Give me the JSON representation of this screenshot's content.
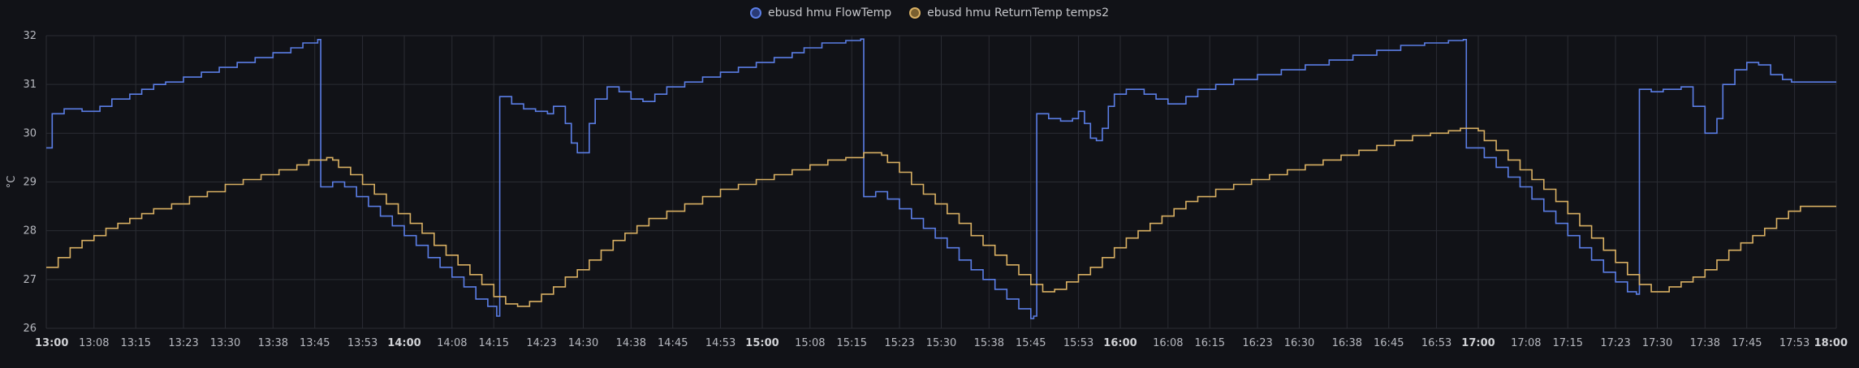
{
  "chart_data": {
    "type": "line",
    "ylabel": "°C",
    "ylim": [
      26,
      32
    ],
    "yticks": [
      "26",
      "27",
      "28",
      "29",
      "30",
      "31",
      "32"
    ],
    "xticks": [
      "13:00",
      "13:08",
      "13:15",
      "13:23",
      "13:30",
      "13:38",
      "13:45",
      "13:53",
      "14:00",
      "14:08",
      "14:15",
      "14:23",
      "14:30",
      "14:38",
      "14:45",
      "14:53",
      "15:00",
      "15:08",
      "15:15",
      "15:23",
      "15:30",
      "15:38",
      "15:45",
      "15:53",
      "16:00",
      "16:08",
      "16:15",
      "16:23",
      "16:30",
      "16:38",
      "16:45",
      "16:53",
      "17:00",
      "17:08",
      "17:15",
      "17:23",
      "17:30",
      "17:38",
      "17:45",
      "17:53",
      "18:00"
    ],
    "major_ticks": [
      "13:00",
      "14:00",
      "15:00",
      "16:00",
      "17:00",
      "18:00"
    ],
    "x_range_minutes": [
      0,
      300
    ],
    "grid": true,
    "legend_placement": "top-center",
    "series": [
      {
        "name": "ebusd hmu FlowTemp",
        "color": "#5b7ee6",
        "points": [
          [
            0,
            29.7
          ],
          [
            1,
            30.4
          ],
          [
            3,
            30.5
          ],
          [
            6,
            30.45
          ],
          [
            9,
            30.55
          ],
          [
            11,
            30.7
          ],
          [
            14,
            30.8
          ],
          [
            16,
            30.9
          ],
          [
            18,
            31.0
          ],
          [
            20,
            31.05
          ],
          [
            23,
            31.15
          ],
          [
            26,
            31.25
          ],
          [
            29,
            31.35
          ],
          [
            32,
            31.45
          ],
          [
            35,
            31.55
          ],
          [
            38,
            31.65
          ],
          [
            41,
            31.75
          ],
          [
            43,
            31.85
          ],
          [
            45.5,
            31.92
          ],
          [
            46,
            28.9
          ],
          [
            48,
            29.0
          ],
          [
            50,
            28.9
          ],
          [
            52,
            28.7
          ],
          [
            54,
            28.5
          ],
          [
            56,
            28.3
          ],
          [
            58,
            28.1
          ],
          [
            60,
            27.9
          ],
          [
            62,
            27.7
          ],
          [
            64,
            27.45
          ],
          [
            66,
            27.25
          ],
          [
            68,
            27.05
          ],
          [
            70,
            26.85
          ],
          [
            72,
            26.6
          ],
          [
            74,
            26.45
          ],
          [
            75.5,
            26.25
          ],
          [
            76,
            30.75
          ],
          [
            78,
            30.6
          ],
          [
            80,
            30.5
          ],
          [
            82,
            30.45
          ],
          [
            84,
            30.4
          ],
          [
            85,
            30.55
          ],
          [
            87,
            30.2
          ],
          [
            88,
            29.8
          ],
          [
            89,
            29.6
          ],
          [
            91,
            30.2
          ],
          [
            92,
            30.7
          ],
          [
            94,
            30.95
          ],
          [
            96,
            30.85
          ],
          [
            98,
            30.7
          ],
          [
            100,
            30.65
          ],
          [
            102,
            30.8
          ],
          [
            104,
            30.95
          ],
          [
            107,
            31.05
          ],
          [
            110,
            31.15
          ],
          [
            113,
            31.25
          ],
          [
            116,
            31.35
          ],
          [
            119,
            31.45
          ],
          [
            122,
            31.55
          ],
          [
            125,
            31.65
          ],
          [
            127,
            31.75
          ],
          [
            130,
            31.85
          ],
          [
            134,
            31.9
          ],
          [
            136.5,
            31.93
          ],
          [
            137,
            28.7
          ],
          [
            139,
            28.8
          ],
          [
            141,
            28.65
          ],
          [
            143,
            28.45
          ],
          [
            145,
            28.25
          ],
          [
            147,
            28.05
          ],
          [
            149,
            27.85
          ],
          [
            151,
            27.65
          ],
          [
            153,
            27.4
          ],
          [
            155,
            27.2
          ],
          [
            157,
            27.0
          ],
          [
            159,
            26.8
          ],
          [
            161,
            26.6
          ],
          [
            163,
            26.4
          ],
          [
            165,
            26.2
          ],
          [
            165.5,
            26.25
          ],
          [
            166,
            30.4
          ],
          [
            168,
            30.3
          ],
          [
            170,
            30.25
          ],
          [
            172,
            30.3
          ],
          [
            173,
            30.45
          ],
          [
            174,
            30.2
          ],
          [
            175,
            29.9
          ],
          [
            176,
            29.85
          ],
          [
            177,
            30.1
          ],
          [
            178,
            30.55
          ],
          [
            179,
            30.8
          ],
          [
            181,
            30.9
          ],
          [
            184,
            30.8
          ],
          [
            186,
            30.7
          ],
          [
            188,
            30.6
          ],
          [
            191,
            30.75
          ],
          [
            193,
            30.9
          ],
          [
            196,
            31.0
          ],
          [
            199,
            31.1
          ],
          [
            203,
            31.2
          ],
          [
            207,
            31.3
          ],
          [
            211,
            31.4
          ],
          [
            215,
            31.5
          ],
          [
            219,
            31.6
          ],
          [
            223,
            31.7
          ],
          [
            227,
            31.8
          ],
          [
            231,
            31.85
          ],
          [
            235,
            31.9
          ],
          [
            237.5,
            31.92
          ],
          [
            238,
            29.7
          ],
          [
            241,
            29.5
          ],
          [
            243,
            29.3
          ],
          [
            245,
            29.1
          ],
          [
            247,
            28.9
          ],
          [
            249,
            28.65
          ],
          [
            251,
            28.4
          ],
          [
            253,
            28.15
          ],
          [
            255,
            27.9
          ],
          [
            257,
            27.65
          ],
          [
            259,
            27.4
          ],
          [
            261,
            27.15
          ],
          [
            263,
            26.95
          ],
          [
            265,
            26.75
          ],
          [
            266.5,
            26.7
          ],
          [
            267,
            30.9
          ],
          [
            269,
            30.85
          ],
          [
            271,
            30.9
          ],
          [
            274,
            30.95
          ],
          [
            276,
            30.55
          ],
          [
            278,
            30.0
          ],
          [
            280,
            30.3
          ],
          [
            281,
            31.0
          ],
          [
            283,
            31.3
          ],
          [
            285,
            31.45
          ],
          [
            287,
            31.4
          ],
          [
            289,
            31.2
          ],
          [
            291,
            31.1
          ],
          [
            292.5,
            31.05
          ]
        ]
      },
      {
        "name": "ebusd hmu ReturnTemp temps2",
        "color": "#d9b063",
        "points": [
          [
            0,
            27.25
          ],
          [
            2,
            27.45
          ],
          [
            4,
            27.65
          ],
          [
            6,
            27.8
          ],
          [
            8,
            27.9
          ],
          [
            10,
            28.05
          ],
          [
            12,
            28.15
          ],
          [
            14,
            28.25
          ],
          [
            16,
            28.35
          ],
          [
            18,
            28.45
          ],
          [
            21,
            28.55
          ],
          [
            24,
            28.7
          ],
          [
            27,
            28.8
          ],
          [
            30,
            28.95
          ],
          [
            33,
            29.05
          ],
          [
            36,
            29.15
          ],
          [
            39,
            29.25
          ],
          [
            42,
            29.35
          ],
          [
            44,
            29.45
          ],
          [
            47,
            29.5
          ],
          [
            48,
            29.45
          ],
          [
            49,
            29.3
          ],
          [
            51,
            29.15
          ],
          [
            53,
            28.95
          ],
          [
            55,
            28.75
          ],
          [
            57,
            28.55
          ],
          [
            59,
            28.35
          ],
          [
            61,
            28.15
          ],
          [
            63,
            27.95
          ],
          [
            65,
            27.7
          ],
          [
            67,
            27.5
          ],
          [
            69,
            27.3
          ],
          [
            71,
            27.1
          ],
          [
            73,
            26.9
          ],
          [
            75,
            26.65
          ],
          [
            77,
            26.5
          ],
          [
            79,
            26.45
          ],
          [
            81,
            26.55
          ],
          [
            83,
            26.7
          ],
          [
            85,
            26.85
          ],
          [
            87,
            27.05
          ],
          [
            89,
            27.2
          ],
          [
            91,
            27.4
          ],
          [
            93,
            27.6
          ],
          [
            95,
            27.8
          ],
          [
            97,
            27.95
          ],
          [
            99,
            28.1
          ],
          [
            101,
            28.25
          ],
          [
            104,
            28.4
          ],
          [
            107,
            28.55
          ],
          [
            110,
            28.7
          ],
          [
            113,
            28.85
          ],
          [
            116,
            28.95
          ],
          [
            119,
            29.05
          ],
          [
            122,
            29.15
          ],
          [
            125,
            29.25
          ],
          [
            128,
            29.35
          ],
          [
            131,
            29.45
          ],
          [
            134,
            29.5
          ],
          [
            137,
            29.6
          ],
          [
            140,
            29.55
          ],
          [
            141,
            29.4
          ],
          [
            143,
            29.2
          ],
          [
            145,
            28.95
          ],
          [
            147,
            28.75
          ],
          [
            149,
            28.55
          ],
          [
            151,
            28.35
          ],
          [
            153,
            28.15
          ],
          [
            155,
            27.9
          ],
          [
            157,
            27.7
          ],
          [
            159,
            27.5
          ],
          [
            161,
            27.3
          ],
          [
            163,
            27.1
          ],
          [
            165,
            26.9
          ],
          [
            167,
            26.75
          ],
          [
            169,
            26.8
          ],
          [
            171,
            26.95
          ],
          [
            173,
            27.1
          ],
          [
            175,
            27.25
          ],
          [
            177,
            27.45
          ],
          [
            179,
            27.65
          ],
          [
            181,
            27.85
          ],
          [
            183,
            28.0
          ],
          [
            185,
            28.15
          ],
          [
            187,
            28.3
          ],
          [
            189,
            28.45
          ],
          [
            191,
            28.6
          ],
          [
            193,
            28.7
          ],
          [
            196,
            28.85
          ],
          [
            199,
            28.95
          ],
          [
            202,
            29.05
          ],
          [
            205,
            29.15
          ],
          [
            208,
            29.25
          ],
          [
            211,
            29.35
          ],
          [
            214,
            29.45
          ],
          [
            217,
            29.55
          ],
          [
            220,
            29.65
          ],
          [
            223,
            29.75
          ],
          [
            226,
            29.85
          ],
          [
            229,
            29.95
          ],
          [
            232,
            30.0
          ],
          [
            235,
            30.05
          ],
          [
            237,
            30.1
          ],
          [
            240,
            30.05
          ],
          [
            241,
            29.85
          ],
          [
            243,
            29.65
          ],
          [
            245,
            29.45
          ],
          [
            247,
            29.25
          ],
          [
            249,
            29.05
          ],
          [
            251,
            28.85
          ],
          [
            253,
            28.6
          ],
          [
            255,
            28.35
          ],
          [
            257,
            28.1
          ],
          [
            259,
            27.85
          ],
          [
            261,
            27.6
          ],
          [
            263,
            27.35
          ],
          [
            265,
            27.1
          ],
          [
            267,
            26.9
          ],
          [
            269,
            26.75
          ],
          [
            272,
            26.85
          ],
          [
            274,
            26.95
          ],
          [
            276,
            27.05
          ],
          [
            278,
            27.2
          ],
          [
            280,
            27.4
          ],
          [
            282,
            27.6
          ],
          [
            284,
            27.75
          ],
          [
            286,
            27.9
          ],
          [
            288,
            28.05
          ],
          [
            290,
            28.25
          ],
          [
            292,
            28.4
          ],
          [
            294,
            28.5
          ],
          [
            297,
            28.5
          ]
        ]
      }
    ]
  }
}
